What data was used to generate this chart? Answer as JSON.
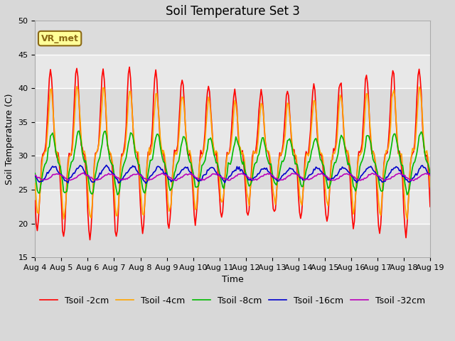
{
  "title": "Soil Temperature Set 3",
  "xlabel": "Time",
  "ylabel": "Soil Temperature (C)",
  "ylim": [
    15,
    50
  ],
  "x_tick_labels": [
    "Aug 4",
    "Aug 5",
    "Aug 6",
    "Aug 7",
    "Aug 8",
    "Aug 9",
    "Aug 10",
    "Aug 11",
    "Aug 12",
    "Aug 13",
    "Aug 14",
    "Aug 15",
    "Aug 16",
    "Aug 17",
    "Aug 18",
    "Aug 19"
  ],
  "annotation_text": "VR_met",
  "annotation_color": "#8B6914",
  "annotation_bg": "#FFFF99",
  "fig_bg": "#D8D8D8",
  "plot_bg": "#E8E8E8",
  "band_colors": [
    "#DCDCDC",
    "#E8E8E8"
  ],
  "series": [
    {
      "label": "Tsoil -2cm",
      "color": "#FF0000"
    },
    {
      "label": "Tsoil -4cm",
      "color": "#FFA500"
    },
    {
      "label": "Tsoil -8cm",
      "color": "#00BB00"
    },
    {
      "label": "Tsoil -16cm",
      "color": "#0000CC"
    },
    {
      "label": "Tsoil -32cm",
      "color": "#BB00BB"
    }
  ],
  "title_fontsize": 12,
  "label_fontsize": 9,
  "tick_fontsize": 8,
  "legend_fontsize": 9,
  "linewidth": 1.2
}
